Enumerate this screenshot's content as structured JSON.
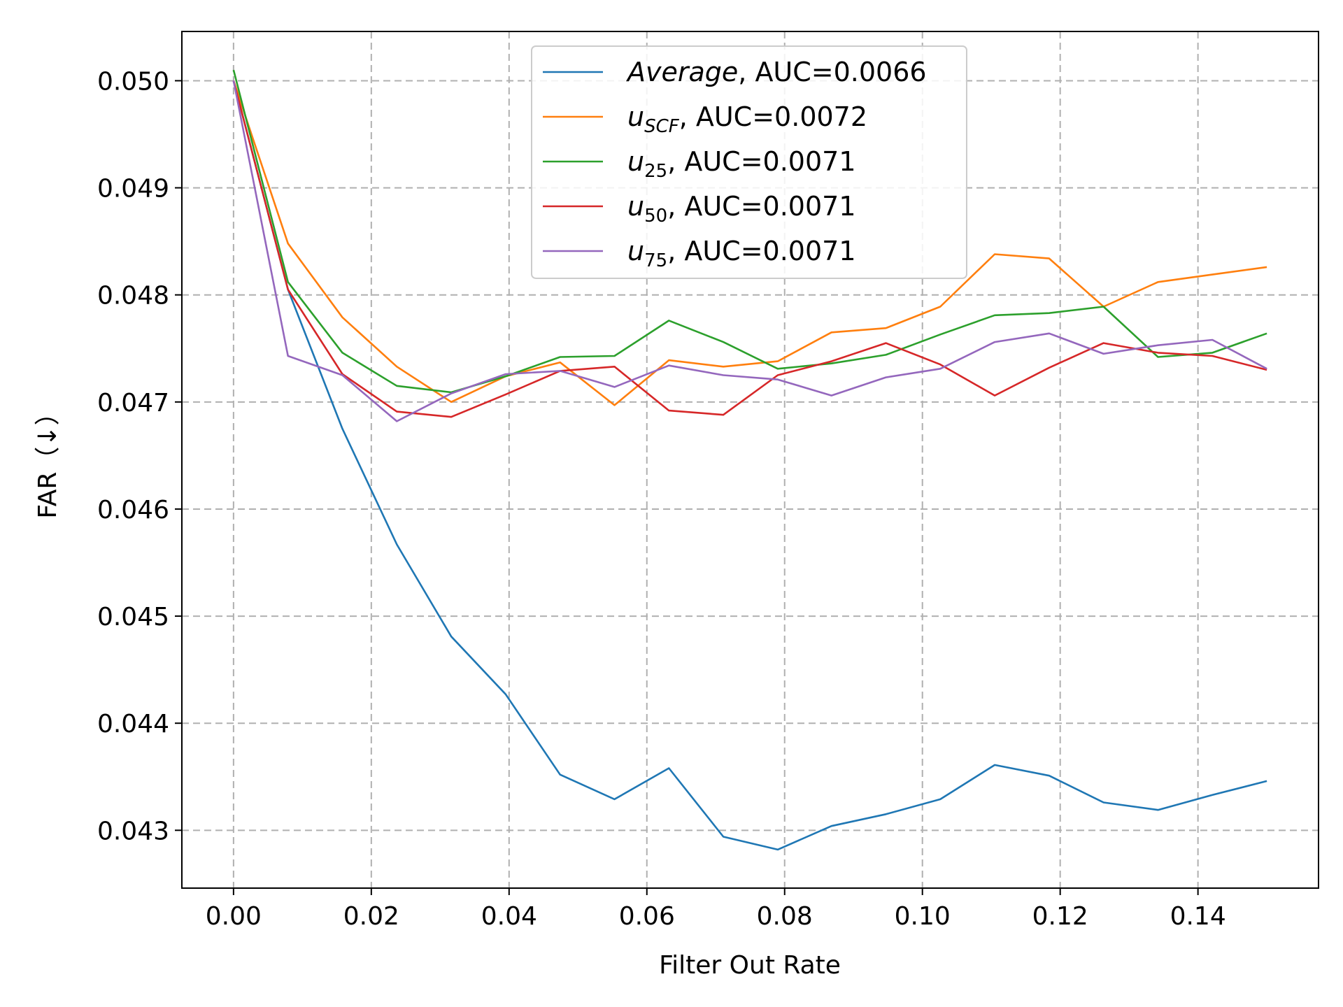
{
  "chart_data": {
    "type": "line",
    "xlabel": "Filter Out Rate",
    "ylabel": "FAR（↓）",
    "xlim": [
      -0.0075,
      0.1575
    ],
    "ylim": [
      0.04246,
      0.05046
    ],
    "xticks": [
      0.0,
      0.02,
      0.04,
      0.06,
      0.08,
      0.1,
      0.12,
      0.14
    ],
    "xtick_labels": [
      "0.00",
      "0.02",
      "0.04",
      "0.06",
      "0.08",
      "0.10",
      "0.12",
      "0.14"
    ],
    "yticks": [
      0.043,
      0.044,
      0.045,
      0.046,
      0.047,
      0.048,
      0.049,
      0.05
    ],
    "ytick_labels": [
      "0.043",
      "0.044",
      "0.045",
      "0.046",
      "0.047",
      "0.048",
      "0.049",
      "0.050"
    ],
    "grid": true,
    "legend_position": "top-center",
    "x": [
      0.0,
      0.0079,
      0.0158,
      0.0237,
      0.0316,
      0.0395,
      0.0474,
      0.0553,
      0.0632,
      0.0711,
      0.079,
      0.0868,
      0.0947,
      0.1026,
      0.1105,
      0.1184,
      0.1263,
      0.1342,
      0.1421,
      0.15
    ],
    "series": [
      {
        "label_main": "Average",
        "label_sub": "",
        "label_suffix": ", AUC=0.0066",
        "italic": true,
        "color": "#1f77b4",
        "values": [
          0.05,
          0.04805,
          0.04675,
          0.04567,
          0.04481,
          0.04427,
          0.04352,
          0.04329,
          0.04358,
          0.04294,
          0.04282,
          0.04304,
          0.04315,
          0.04329,
          0.04361,
          0.04351,
          0.04326,
          0.04319,
          0.04333,
          0.04346
        ]
      },
      {
        "label_main": "u",
        "label_sub": "SCF",
        "label_suffix": ", AUC=0.0072",
        "italic": false,
        "color": "#ff7f0e",
        "values": [
          0.05,
          0.04848,
          0.04779,
          0.04733,
          0.047,
          0.04724,
          0.04737,
          0.04697,
          0.04739,
          0.04733,
          0.04738,
          0.04765,
          0.04769,
          0.04789,
          0.04838,
          0.04834,
          0.04789,
          0.04812,
          0.04819,
          0.04826
        ]
      },
      {
        "label_main": "u",
        "label_sub": "25",
        "label_suffix": ", AUC=0.0071",
        "italic": false,
        "color": "#2ca02c",
        "values": [
          0.0501,
          0.04812,
          0.04746,
          0.04715,
          0.04709,
          0.04724,
          0.04742,
          0.04743,
          0.04776,
          0.04756,
          0.04731,
          0.04736,
          0.04744,
          0.04763,
          0.04781,
          0.04783,
          0.04789,
          0.04742,
          0.04746,
          0.04764
        ]
      },
      {
        "label_main": "u",
        "label_sub": "50",
        "label_suffix": ", AUC=0.0071",
        "italic": false,
        "color": "#d62728",
        "values": [
          0.05,
          0.04805,
          0.04726,
          0.04691,
          0.04686,
          0.04707,
          0.04729,
          0.04733,
          0.04692,
          0.04688,
          0.04725,
          0.04738,
          0.04755,
          0.04735,
          0.04706,
          0.04732,
          0.04755,
          0.04746,
          0.04743,
          0.0473
        ]
      },
      {
        "label_main": "u",
        "label_sub": "75",
        "label_suffix": ", AUC=0.0071",
        "italic": false,
        "color": "#9467bd",
        "values": [
          0.05,
          0.04743,
          0.04725,
          0.04682,
          0.04708,
          0.04726,
          0.04729,
          0.04714,
          0.04734,
          0.04725,
          0.04721,
          0.04706,
          0.04723,
          0.04731,
          0.04756,
          0.04764,
          0.04745,
          0.04753,
          0.04758,
          0.04731
        ]
      }
    ]
  }
}
